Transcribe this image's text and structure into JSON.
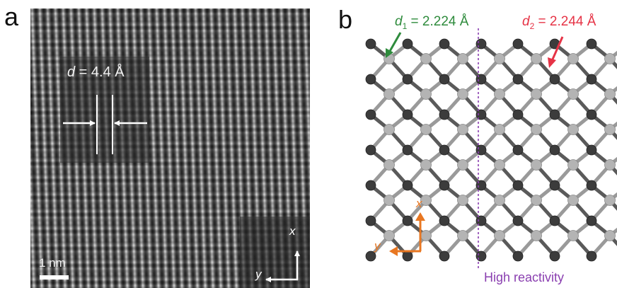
{
  "panel_a": {
    "label": "a",
    "d_value": "4.4 Å",
    "d_symbol": "d",
    "d_equals": " = ",
    "scale_bar": "1 nm",
    "axis_x": "x",
    "axis_y": "y"
  },
  "panel_b": {
    "label": "b",
    "d1_symbol": "d",
    "d1_sub": "1",
    "d1_value": " = 2.224 Å",
    "d2_symbol": "d",
    "d2_sub": "2",
    "d2_value": " = 2.244 Å",
    "region_label": "High reactivity",
    "axis_x": "x",
    "axis_y": "y"
  },
  "colors": {
    "d1_green": "#2e8b3c",
    "d2_red": "#e63346",
    "axis_orange": "#e87722",
    "region_purple": "#8a3fb0",
    "atom_dark": "#3c3c3c",
    "atom_light": "#b4b4b4"
  }
}
